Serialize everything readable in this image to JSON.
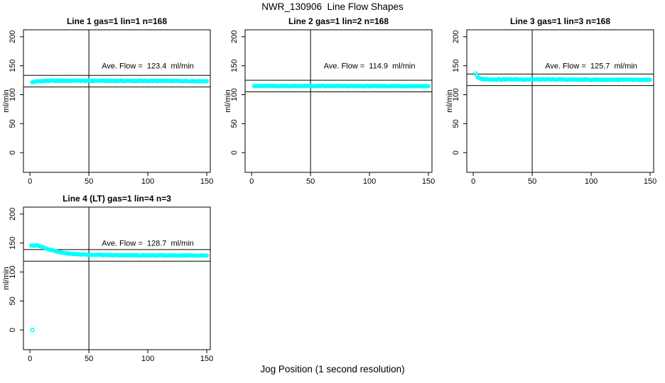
{
  "figure": {
    "title": "NWR_130906  Line Flow Shapes",
    "xlabel": "Jog Position (1 second resolution)",
    "background": "#FFFFFF",
    "axis_color": "#000000",
    "marker_color": "#00FFFF"
  },
  "chart_data": [
    {
      "type": "scatter",
      "title": "Line 1 gas=1 lin=1 n=168",
      "ylabel": "ml/min",
      "annotation": {
        "text": "Ave. Flow =  123.4  ml/min",
        "x": 100,
        "y": 150
      },
      "ave_flow_ml_min": 123.4,
      "n": 168,
      "xlim": [
        -5.5,
        153
      ],
      "ylim": [
        -34,
        212
      ],
      "xticks": [
        0,
        50,
        100,
        150
      ],
      "yticks": [
        0,
        50,
        100,
        150,
        200
      ],
      "vline_x": 50,
      "hlines_y": [
        133.4,
        113.4
      ],
      "series_anchors": [
        [
          2,
          121.5
        ],
        [
          4,
          122.3
        ],
        [
          8,
          123.4
        ],
        [
          15,
          123.9
        ],
        [
          30,
          124.1
        ],
        [
          60,
          124.0
        ],
        [
          90,
          123.8
        ],
        [
          120,
          123.7
        ],
        [
          150,
          123.4
        ]
      ],
      "point_step": 1,
      "jitter": 0.6,
      "isolated_points": []
    },
    {
      "type": "scatter",
      "title": "Line 2 gas=1 lin=2 n=168",
      "ylabel": "ml/min",
      "annotation": {
        "text": "Ave. Flow =  114.9  ml/min",
        "x": 100,
        "y": 150
      },
      "ave_flow_ml_min": 114.9,
      "n": 168,
      "xlim": [
        -5.5,
        153
      ],
      "ylim": [
        -34,
        212
      ],
      "xticks": [
        0,
        50,
        100,
        150
      ],
      "yticks": [
        0,
        50,
        100,
        150,
        200
      ],
      "vline_x": 50,
      "hlines_y": [
        124.9,
        104.9
      ],
      "series_anchors": [
        [
          2,
          115.1
        ],
        [
          20,
          115.0
        ],
        [
          60,
          114.9
        ],
        [
          100,
          114.8
        ],
        [
          150,
          114.8
        ]
      ],
      "point_step": 1,
      "jitter": 0.45,
      "isolated_points": []
    },
    {
      "type": "scatter",
      "title": "Line 3 gas=1 lin=3 n=168",
      "ylabel": "ml/min",
      "annotation": {
        "text": "Ave. Flow =  125.7  ml/min",
        "x": 100,
        "y": 150
      },
      "ave_flow_ml_min": 125.7,
      "n": 168,
      "xlim": [
        -5.5,
        153
      ],
      "ylim": [
        -34,
        212
      ],
      "xticks": [
        0,
        50,
        100,
        150
      ],
      "yticks": [
        0,
        50,
        100,
        150,
        200
      ],
      "vline_x": 50,
      "hlines_y": [
        135.7,
        115.7
      ],
      "series_anchors": [
        [
          2,
          137.0
        ],
        [
          3,
          132.5
        ],
        [
          4,
          129.5
        ],
        [
          6,
          127.5
        ],
        [
          10,
          126.8
        ],
        [
          20,
          126.5
        ],
        [
          50,
          126.3
        ],
        [
          90,
          126.0
        ],
        [
          120,
          125.8
        ],
        [
          150,
          125.3
        ]
      ],
      "point_step": 1,
      "jitter": 0.7,
      "isolated_points": []
    },
    {
      "type": "scatter",
      "title": "Line 4 (LT) gas=1 lin=4 n=3",
      "ylabel": "ml/min",
      "annotation": {
        "text": "Ave. Flow =  128.7  ml/min",
        "x": 100,
        "y": 150
      },
      "ave_flow_ml_min": 128.7,
      "n": 3,
      "xlim": [
        -5.5,
        153
      ],
      "ylim": [
        -34,
        212
      ],
      "xticks": [
        0,
        50,
        100,
        150
      ],
      "yticks": [
        0,
        50,
        100,
        150,
        200
      ],
      "vline_x": 50,
      "hlines_y": [
        138.7,
        118.7
      ],
      "series_anchors": [
        [
          1,
          145.3
        ],
        [
          2,
          145.8
        ],
        [
          5,
          146.0
        ],
        [
          7,
          145.6
        ],
        [
          9,
          144.3
        ],
        [
          12,
          142.0
        ],
        [
          15,
          139.8
        ],
        [
          18,
          137.8
        ],
        [
          21,
          136.2
        ],
        [
          25,
          134.3
        ],
        [
          29,
          132.8
        ],
        [
          33,
          131.8
        ],
        [
          37,
          131.1
        ],
        [
          42,
          130.5
        ],
        [
          47,
          130.1
        ],
        [
          55,
          129.7
        ],
        [
          65,
          129.3
        ],
        [
          75,
          129.1
        ],
        [
          90,
          128.9
        ],
        [
          105,
          128.7
        ],
        [
          120,
          128.6
        ],
        [
          135,
          128.5
        ],
        [
          150,
          128.4
        ]
      ],
      "point_step": 1,
      "jitter": 0.55,
      "isolated_points": [
        [
          2,
          0
        ]
      ]
    }
  ]
}
